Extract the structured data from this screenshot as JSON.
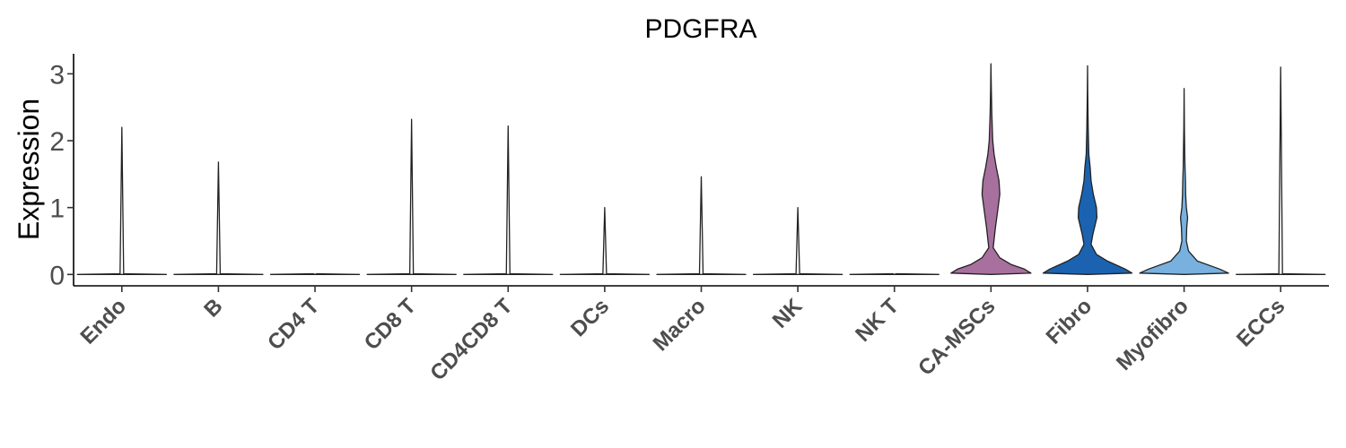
{
  "chart_data": {
    "type": "violin",
    "title": "PDGFRA",
    "xlabel": "",
    "ylabel": "Expression",
    "ylim": [
      -0.17,
      3.3
    ],
    "yticks": [
      0,
      1,
      2,
      3
    ],
    "ytick_labels": [
      "0",
      "1",
      "2",
      "3"
    ],
    "grid": false,
    "legend": "none",
    "categories": [
      "Endo",
      "B",
      "CD4 T",
      "CD8 T",
      "CD4CD8 T",
      "DCs",
      "Macro",
      "NK",
      "NK T",
      "CA-MSCs",
      "Fibro",
      "Myofibro",
      "ECCs"
    ],
    "colors": [
      "#ffffff",
      "#ffffff",
      "#ffffff",
      "#ffffff",
      "#ffffff",
      "#ffffff",
      "#ffffff",
      "#ffffff",
      "#ffffff",
      "#a8709e",
      "#1b63b0",
      "#78b0e0",
      "#ffffff"
    ],
    "max_values": [
      2.2,
      1.68,
      0,
      2.32,
      2.22,
      1.0,
      1.46,
      1.0,
      0,
      3.15,
      3.12,
      2.78,
      3.1
    ],
    "density_profiles": [
      null,
      null,
      null,
      null,
      null,
      null,
      null,
      null,
      null,
      [
        [
          0,
          0.0
        ],
        [
          0.02,
          0.9
        ],
        [
          0.08,
          0.75
        ],
        [
          0.15,
          0.45
        ],
        [
          0.25,
          0.2
        ],
        [
          0.4,
          0.05
        ],
        [
          0.7,
          0.1
        ],
        [
          1.0,
          0.16
        ],
        [
          1.2,
          0.2
        ],
        [
          1.4,
          0.18
        ],
        [
          1.6,
          0.12
        ],
        [
          1.8,
          0.07
        ],
        [
          2.0,
          0.04
        ],
        [
          2.4,
          0.02
        ],
        [
          2.8,
          0.008
        ],
        [
          3.15,
          0.0
        ]
      ],
      [
        [
          0,
          0.0
        ],
        [
          0.02,
          1.0
        ],
        [
          0.08,
          0.85
        ],
        [
          0.2,
          0.45
        ],
        [
          0.3,
          0.2
        ],
        [
          0.45,
          0.08
        ],
        [
          0.6,
          0.12
        ],
        [
          0.85,
          0.21
        ],
        [
          1.0,
          0.2
        ],
        [
          1.2,
          0.13
        ],
        [
          1.4,
          0.08
        ],
        [
          1.6,
          0.06
        ],
        [
          1.8,
          0.03
        ],
        [
          2.2,
          0.015
        ],
        [
          2.7,
          0.005
        ],
        [
          3.12,
          0.0
        ]
      ],
      [
        [
          0,
          0.0
        ],
        [
          0.02,
          1.0
        ],
        [
          0.08,
          0.8
        ],
        [
          0.2,
          0.3
        ],
        [
          0.35,
          0.1
        ],
        [
          0.5,
          0.05
        ],
        [
          0.7,
          0.06
        ],
        [
          0.85,
          0.08
        ],
        [
          1.0,
          0.05
        ],
        [
          1.2,
          0.035
        ],
        [
          1.4,
          0.03
        ],
        [
          1.6,
          0.02
        ],
        [
          1.8,
          0.015
        ],
        [
          2.2,
          0.006
        ],
        [
          2.78,
          0.0
        ]
      ],
      null
    ]
  }
}
